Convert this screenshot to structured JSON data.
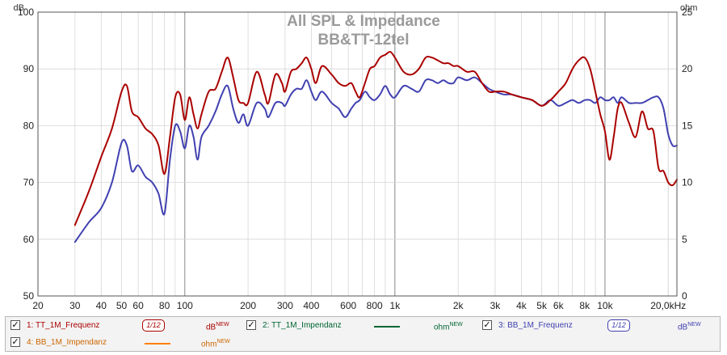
{
  "chart_data": {
    "type": "line",
    "title": "All SPL & Impedance",
    "subtitle": "BB&TT-12tel",
    "xlabel": "",
    "ylabel_left": "dB",
    "ylabel_right": "ohm",
    "x_scale": "log",
    "xlim": [
      20,
      22000
    ],
    "ylim": [
      50,
      100
    ],
    "ylim_right": [
      0,
      25
    ],
    "grid": true,
    "x_ticks": [
      {
        "value": 20,
        "label": "20"
      },
      {
        "value": 30,
        "label": "30"
      },
      {
        "value": 40,
        "label": "40"
      },
      {
        "value": 50,
        "label": "50"
      },
      {
        "value": 60,
        "label": "60"
      },
      {
        "value": 80,
        "label": "80"
      },
      {
        "value": 100,
        "label": "100"
      },
      {
        "value": 200,
        "label": "200"
      },
      {
        "value": 300,
        "label": "300"
      },
      {
        "value": 400,
        "label": "400"
      },
      {
        "value": 600,
        "label": "600"
      },
      {
        "value": 800,
        "label": "800"
      },
      {
        "value": 1000,
        "label": "1k"
      },
      {
        "value": 2000,
        "label": "2k"
      },
      {
        "value": 3000,
        "label": "3k"
      },
      {
        "value": 4000,
        "label": "4k"
      },
      {
        "value": 5000,
        "label": "5k"
      },
      {
        "value": 6000,
        "label": "6k"
      },
      {
        "value": 8000,
        "label": "8k"
      },
      {
        "value": 10000,
        "label": "10k"
      },
      {
        "value": 20000,
        "label": "20,0kHz"
      }
    ],
    "y_ticks_left": [
      {
        "value": 50,
        "label": "50"
      },
      {
        "value": 60,
        "label": "60"
      },
      {
        "value": 70,
        "label": "70"
      },
      {
        "value": 80,
        "label": "80"
      },
      {
        "value": 90,
        "label": "90"
      },
      {
        "value": 100,
        "label": "100"
      }
    ],
    "y_ticks_right": [
      {
        "value": 0,
        "label": "0"
      },
      {
        "value": 5,
        "label": "5"
      },
      {
        "value": 10,
        "label": "10"
      },
      {
        "value": 15,
        "label": "15"
      },
      {
        "value": 20,
        "label": "20"
      },
      {
        "value": 25,
        "label": "25"
      }
    ],
    "series": [
      {
        "name": "TT_1M_Frequenz",
        "color": "#aa0000",
        "x": [
          30,
          35,
          40,
          45,
          50,
          53,
          56,
          60,
          65,
          70,
          75,
          80,
          85,
          90,
          95,
          100,
          105,
          110,
          115,
          120,
          130,
          140,
          150,
          160,
          170,
          180,
          190,
          200,
          220,
          240,
          250,
          270,
          290,
          300,
          320,
          340,
          360,
          380,
          400,
          420,
          450,
          500,
          540,
          580,
          620,
          650,
          680,
          720,
          760,
          800,
          850,
          900,
          950,
          1000,
          1100,
          1200,
          1300,
          1400,
          1500,
          1600,
          1700,
          1800,
          1900,
          2000,
          2200,
          2400,
          2600,
          2800,
          3000,
          3300,
          3600,
          4000,
          4500,
          5000,
          5500,
          6000,
          6500,
          7000,
          7500,
          8000,
          8500,
          9000,
          9500,
          10000,
          10500,
          11000,
          11500,
          12000,
          13000,
          14000,
          15000,
          16000,
          17000,
          18000,
          19000,
          20000,
          21000,
          22000
        ],
        "y": [
          62.5,
          68.5,
          74.5,
          79.5,
          86,
          87,
          82.5,
          81.5,
          79.5,
          78.5,
          76.5,
          71.5,
          78,
          85,
          85.5,
          81,
          85,
          82,
          79.5,
          82,
          86,
          86.5,
          89.5,
          92,
          88.5,
          84.5,
          84,
          84,
          89.5,
          85.5,
          84,
          89,
          87.5,
          86,
          89.5,
          90,
          91,
          92,
          90,
          87.5,
          90.5,
          89,
          87.5,
          87,
          87.5,
          86,
          85,
          87.5,
          90,
          90.5,
          92,
          92.5,
          93,
          92,
          89.5,
          89,
          90,
          92,
          92,
          91.5,
          91,
          91,
          90.5,
          90.5,
          89.5,
          89.5,
          87.5,
          86,
          86,
          86,
          85.5,
          85,
          84.5,
          83.5,
          84.5,
          86,
          87.5,
          90,
          91.5,
          92,
          90,
          86,
          82,
          79,
          74,
          78,
          83,
          84,
          80.5,
          78,
          82.5,
          79.5,
          79,
          72.5,
          72,
          70,
          69.5,
          70.5
        ]
      },
      {
        "name": "TT_1M_Impendanz",
        "color": "#006633",
        "x": [],
        "y": []
      },
      {
        "name": "BB_1M_Frequenz",
        "color": "#4040b0",
        "x": [
          30,
          35,
          40,
          45,
          50,
          53,
          56,
          60,
          65,
          70,
          75,
          80,
          85,
          90,
          95,
          100,
          105,
          110,
          115,
          120,
          130,
          140,
          150,
          160,
          170,
          180,
          190,
          200,
          220,
          240,
          250,
          270,
          290,
          300,
          320,
          340,
          360,
          380,
          400,
          420,
          450,
          500,
          540,
          580,
          620,
          650,
          680,
          720,
          760,
          800,
          850,
          900,
          950,
          1000,
          1100,
          1200,
          1300,
          1400,
          1500,
          1600,
          1700,
          1800,
          1900,
          2000,
          2200,
          2400,
          2600,
          2800,
          3000,
          3300,
          3600,
          4000,
          4500,
          5000,
          5500,
          6000,
          6500,
          7000,
          7500,
          8000,
          8500,
          9000,
          9500,
          10000,
          10500,
          11000,
          11500,
          12000,
          13000,
          14000,
          15000,
          16000,
          17000,
          18000,
          19000,
          20000,
          21000,
          22000
        ],
        "y": [
          59.5,
          63,
          65.5,
          70,
          77,
          76.5,
          72,
          73,
          71,
          70,
          68,
          64.5,
          74,
          80,
          79,
          76,
          80,
          78,
          74,
          78,
          80,
          82.5,
          85.5,
          87,
          83,
          80.5,
          82,
          80,
          84,
          83,
          81.5,
          84,
          84,
          83.5,
          85.5,
          86.5,
          86.5,
          88,
          86,
          84.5,
          86,
          84,
          83,
          81.5,
          83,
          84,
          84.5,
          86,
          85,
          84.5,
          85.5,
          87,
          85.5,
          85,
          87,
          86.5,
          86,
          88,
          88,
          87.5,
          88,
          87.5,
          87.5,
          88.5,
          88,
          88.5,
          87.5,
          86.5,
          86,
          85.5,
          85.5,
          85,
          84.5,
          83.5,
          84.5,
          83.5,
          84,
          84.5,
          84,
          84.5,
          84.5,
          84,
          85,
          84.5,
          84.5,
          85,
          84,
          85,
          84,
          84,
          84,
          84.5,
          85,
          85,
          83,
          78.5,
          76.5,
          76.5
        ]
      },
      {
        "name": "BB_1M_Impendanz",
        "color": "#ff8000",
        "x": [],
        "y": []
      }
    ]
  },
  "legend": {
    "items": [
      {
        "label": "1: TT_1M_Frequenz",
        "smoothing": "1/12",
        "unit": "dB",
        "unit_sup": "NEW",
        "color": "#aa0000"
      },
      {
        "label": "2: TT_1M_Impendanz",
        "smoothing": "",
        "unit": "ohm",
        "unit_sup": "NEW",
        "color": "#006633"
      },
      {
        "label": "3: BB_1M_Frequenz",
        "smoothing": "1/12",
        "unit": "dB",
        "unit_sup": "NEW",
        "color": "#4040b0"
      },
      {
        "label": "4: BB_1M_Impendanz",
        "smoothing": "",
        "unit": "ohm",
        "unit_sup": "NEW",
        "color": "#ff8000"
      }
    ],
    "checkbox_mark": "✓"
  }
}
